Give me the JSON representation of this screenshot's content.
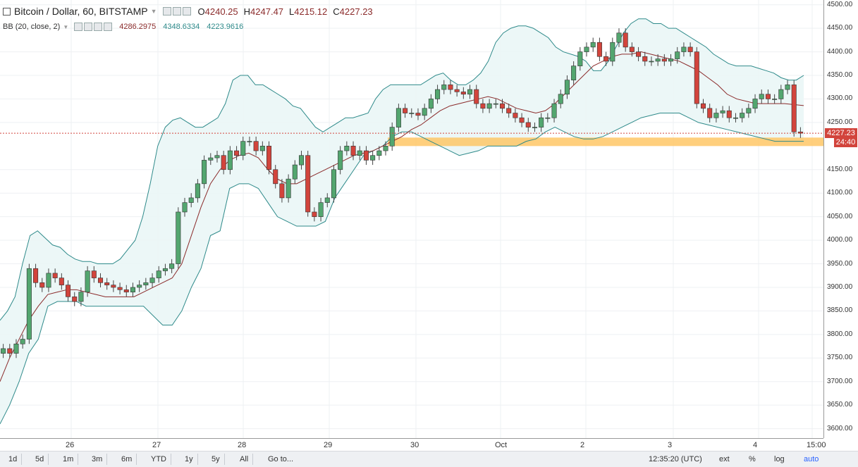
{
  "header": {
    "symbol_title": "Bitcoin / Dollar, 60, BITSTAMP",
    "ohlc": [
      {
        "label": "O",
        "value": "4240.25"
      },
      {
        "label": "H",
        "value": "4247.47"
      },
      {
        "label": "L",
        "value": "4215.12"
      },
      {
        "label": "C",
        "value": "4227.23"
      }
    ],
    "indicator_title": "BB (20, close, 2)",
    "indicator_values": [
      "4286.2975",
      "4348.6334",
      "4223.9616"
    ]
  },
  "price_scale": {
    "ticks": [
      "4500.00",
      "4450.00",
      "4400.00",
      "4350.00",
      "4300.00",
      "4250.00",
      "4150.00",
      "4100.00",
      "4050.00",
      "4000.00",
      "3950.00",
      "3900.00",
      "3850.00",
      "3800.00",
      "3750.00",
      "3700.00",
      "3650.00",
      "3600.00"
    ],
    "last_price_label": "4227.23",
    "countdown_label": "24:40"
  },
  "time_axis": {
    "labels": [
      "26",
      "27",
      "28",
      "29",
      "30",
      "Oct",
      "2",
      "3",
      "4",
      "15:00"
    ]
  },
  "toolbar": {
    "ranges": [
      "1d",
      "5d",
      "1m",
      "3m",
      "6m",
      "YTD",
      "1y",
      "5y",
      "All"
    ],
    "goto_label": "Go to...",
    "clock": "12:35:20 (UTC)",
    "toggles": [
      "ext",
      "%",
      "log",
      "auto"
    ]
  },
  "colors": {
    "bull": "#53a66f",
    "bear": "#d2443c",
    "bb_band": "#2e8a8a",
    "bb_basis": "#8b2b2b",
    "bb_fill": "#eaf6f6",
    "support_zone": "#ffc35c",
    "last_price_tag": "#d2443c",
    "countdown_tag": "#d2443c",
    "last_price_line": "#d2443c"
  },
  "chart_data": {
    "type": "candlestick",
    "ylim": [
      3580,
      4510
    ],
    "x_labels": [
      "26",
      "27",
      "28",
      "29",
      "30",
      "Oct",
      "2",
      "3",
      "4"
    ],
    "support_zone": [
      4200,
      4218
    ],
    "last_price": 4227.23,
    "close": [
      3770,
      3760,
      3780,
      3790,
      3940,
      3910,
      3900,
      3930,
      3920,
      3905,
      3880,
      3870,
      3890,
      3935,
      3920,
      3910,
      3905,
      3900,
      3895,
      3890,
      3900,
      3905,
      3910,
      3920,
      3935,
      3940,
      3950,
      4060,
      4080,
      4090,
      4120,
      4170,
      4175,
      4180,
      4150,
      4190,
      4180,
      4210,
      4210,
      4190,
      4200,
      4150,
      4120,
      4090,
      4130,
      4160,
      4180,
      4060,
      4050,
      4080,
      4090,
      4150,
      4190,
      4200,
      4180,
      4190,
      4170,
      4180,
      4190,
      4200,
      4240,
      4280,
      4270,
      4270,
      4265,
      4280,
      4300,
      4320,
      4330,
      4320,
      4315,
      4310,
      4320,
      4290,
      4280,
      4290,
      4290,
      4280,
      4270,
      4260,
      4250,
      4240,
      4240,
      4260,
      4260,
      4290,
      4310,
      4340,
      4370,
      4400,
      4410,
      4420,
      4390,
      4380,
      4420,
      4440,
      4410,
      4400,
      4390,
      4380,
      4380,
      4385,
      4380,
      4385,
      4400,
      4410,
      4400,
      4290,
      4280,
      4260,
      4270,
      4275,
      4260,
      4260,
      4270,
      4280,
      4300,
      4310,
      4300,
      4300,
      4320,
      4330,
      4230,
      4227.23
    ],
    "bb_upper": [
      3830,
      3850,
      3880,
      3950,
      4010,
      4020,
      4005,
      3990,
      3985,
      3970,
      3960,
      3955,
      3955,
      3950,
      3950,
      3950,
      3960,
      3980,
      4000,
      4050,
      4120,
      4200,
      4240,
      4255,
      4260,
      4250,
      4240,
      4240,
      4250,
      4260,
      4290,
      4340,
      4350,
      4350,
      4330,
      4330,
      4320,
      4310,
      4300,
      4285,
      4280,
      4260,
      4240,
      4230,
      4240,
      4250,
      4260,
      4260,
      4265,
      4270,
      4300,
      4320,
      4330,
      4330,
      4330,
      4330,
      4330,
      4340,
      4350,
      4355,
      4340,
      4330,
      4330,
      4340,
      4355,
      4380,
      4420,
      4440,
      4450,
      4455,
      4455,
      4450,
      4440,
      4430,
      4410,
      4400,
      4395,
      4390,
      4380,
      4360,
      4360,
      4380,
      4410,
      4440,
      4460,
      4470,
      4470,
      4460,
      4460,
      4450,
      4450,
      4440,
      4430,
      4420,
      4410,
      4395,
      4385,
      4375,
      4370,
      4370,
      4370,
      4365,
      4360,
      4355,
      4345,
      4340,
      4340,
      4350
    ],
    "bb_lower": [
      3610,
      3650,
      3700,
      3760,
      3790,
      3860,
      3870,
      3870,
      3870,
      3860,
      3860,
      3860,
      3860,
      3860,
      3860,
      3860,
      3840,
      3820,
      3820,
      3850,
      3900,
      3940,
      4010,
      4020,
      4110,
      4120,
      4120,
      4110,
      4080,
      4050,
      4040,
      4030,
      4030,
      4030,
      4040,
      4090,
      4120,
      4150,
      4180,
      4190,
      4200,
      4220,
      4230,
      4230,
      4220,
      4210,
      4200,
      4190,
      4180,
      4185,
      4190,
      4200,
      4200,
      4200,
      4200,
      4210,
      4215,
      4230,
      4240,
      4230,
      4220,
      4215,
      4215,
      4220,
      4230,
      4240,
      4250,
      4260,
      4265,
      4270,
      4270,
      4270,
      4260,
      4250,
      4245,
      4240,
      4235,
      4230,
      4225,
      4220,
      4215,
      4210,
      4210,
      4210,
      4210
    ],
    "bb_basis": [
      3700,
      3750,
      3790,
      3830,
      3860,
      3885,
      3890,
      3895,
      3895,
      3890,
      3885,
      3880,
      3880,
      3880,
      3880,
      3890,
      3900,
      3910,
      3920,
      3950,
      4010,
      4070,
      4120,
      4150,
      4170,
      4180,
      4185,
      4175,
      4150,
      4130,
      4120,
      4120,
      4130,
      4140,
      4150,
      4160,
      4170,
      4180,
      4185,
      4190,
      4200,
      4210,
      4220,
      4235,
      4245,
      4260,
      4275,
      4285,
      4290,
      4295,
      4300,
      4305,
      4300,
      4290,
      4280,
      4275,
      4270,
      4275,
      4290,
      4310,
      4330,
      4350,
      4370,
      4380,
      4390,
      4395,
      4395,
      4400,
      4395,
      4390,
      4385,
      4380,
      4370,
      4360,
      4345,
      4330,
      4310,
      4300,
      4295,
      4290,
      4290,
      4290,
      4290,
      4288,
      4286
    ]
  }
}
